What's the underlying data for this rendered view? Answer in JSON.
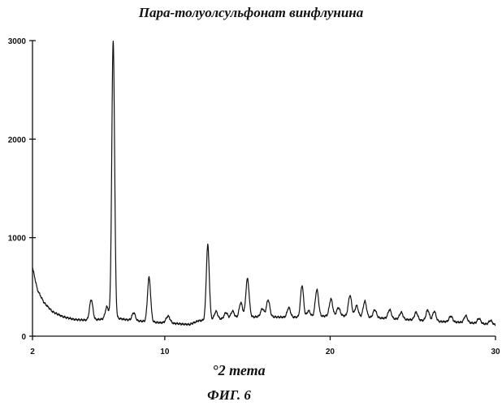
{
  "chart_data": {
    "type": "line",
    "title": "Пара-толуолсульфонат винфлунина",
    "xlabel": "°2 тета",
    "ylabel": "",
    "caption": "ФИГ. 6",
    "xlim": [
      2,
      30
    ],
    "ylim": [
      0,
      3000
    ],
    "x_ticks": [
      "2",
      "10",
      "20",
      "30"
    ],
    "x_tick_values": [
      2,
      10,
      20,
      30
    ],
    "y_ticks": [
      "0",
      "1000",
      "2000",
      "3000"
    ],
    "y_tick_values": [
      0,
      1000,
      2000,
      3000
    ],
    "grid": false,
    "baseline": [
      [
        2,
        700
      ],
      [
        2.3,
        470
      ],
      [
        2.7,
        340
      ],
      [
        3.2,
        250
      ],
      [
        3.8,
        200
      ],
      [
        4.5,
        170
      ],
      [
        5.5,
        160
      ],
      [
        6.0,
        170
      ],
      [
        7.0,
        185
      ],
      [
        8.0,
        160
      ],
      [
        9.5,
        140
      ],
      [
        10.5,
        130
      ],
      [
        11.5,
        118
      ],
      [
        12.0,
        155
      ],
      [
        13.0,
        170
      ],
      [
        14.5,
        190
      ],
      [
        16.0,
        200
      ],
      [
        17.5,
        190
      ],
      [
        19.0,
        200
      ],
      [
        20.5,
        210
      ],
      [
        22.0,
        195
      ],
      [
        23.5,
        180
      ],
      [
        25.0,
        165
      ],
      [
        26.5,
        150
      ],
      [
        28.0,
        140
      ],
      [
        29.0,
        130
      ],
      [
        30.0,
        115
      ]
    ],
    "peaks": [
      {
        "x": 5.55,
        "height": 210,
        "width": 0.1
      },
      {
        "x": 6.5,
        "height": 120,
        "width": 0.1
      },
      {
        "x": 6.88,
        "height": 2810,
        "width": 0.085
      },
      {
        "x": 8.12,
        "height": 80,
        "width": 0.1
      },
      {
        "x": 9.05,
        "height": 450,
        "width": 0.095
      },
      {
        "x": 10.2,
        "height": 70,
        "width": 0.12
      },
      {
        "x": 12.6,
        "height": 760,
        "width": 0.09
      },
      {
        "x": 13.1,
        "height": 80,
        "width": 0.1
      },
      {
        "x": 13.7,
        "height": 60,
        "width": 0.1
      },
      {
        "x": 14.1,
        "height": 70,
        "width": 0.1
      },
      {
        "x": 14.6,
        "height": 150,
        "width": 0.1
      },
      {
        "x": 15.0,
        "height": 390,
        "width": 0.1
      },
      {
        "x": 15.9,
        "height": 80,
        "width": 0.1
      },
      {
        "x": 16.25,
        "height": 170,
        "width": 0.1
      },
      {
        "x": 17.5,
        "height": 100,
        "width": 0.1
      },
      {
        "x": 18.3,
        "height": 320,
        "width": 0.09
      },
      {
        "x": 18.7,
        "height": 60,
        "width": 0.1
      },
      {
        "x": 19.2,
        "height": 270,
        "width": 0.1
      },
      {
        "x": 20.05,
        "height": 170,
        "width": 0.1
      },
      {
        "x": 20.5,
        "height": 80,
        "width": 0.1
      },
      {
        "x": 21.2,
        "height": 210,
        "width": 0.1
      },
      {
        "x": 21.6,
        "height": 110,
        "width": 0.1
      },
      {
        "x": 22.1,
        "height": 160,
        "width": 0.1
      },
      {
        "x": 22.7,
        "height": 80,
        "width": 0.1
      },
      {
        "x": 23.6,
        "height": 90,
        "width": 0.1
      },
      {
        "x": 24.3,
        "height": 70,
        "width": 0.1
      },
      {
        "x": 25.2,
        "height": 80,
        "width": 0.1
      },
      {
        "x": 25.9,
        "height": 110,
        "width": 0.1
      },
      {
        "x": 26.3,
        "height": 100,
        "width": 0.1
      },
      {
        "x": 27.3,
        "height": 60,
        "width": 0.1
      },
      {
        "x": 28.2,
        "height": 70,
        "width": 0.1
      },
      {
        "x": 29.0,
        "height": 50,
        "width": 0.1
      },
      {
        "x": 29.7,
        "height": 40,
        "width": 0.1
      }
    ]
  }
}
